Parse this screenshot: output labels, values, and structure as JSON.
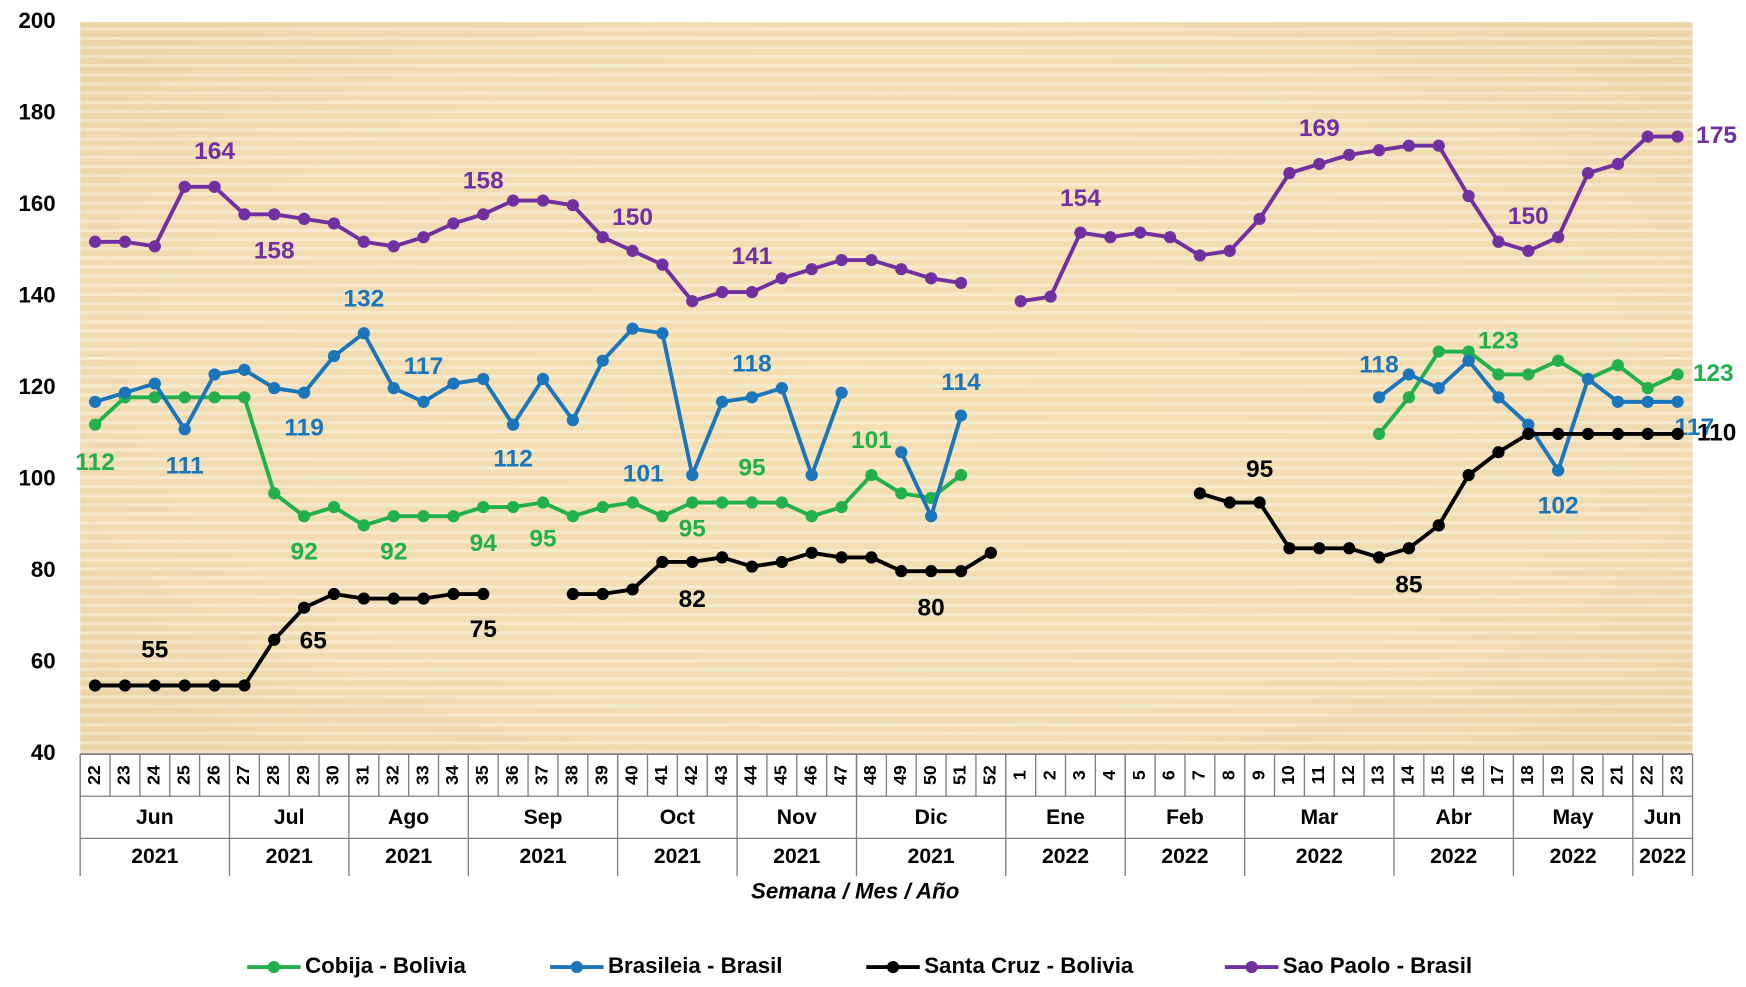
{
  "chart_data": {
    "type": "line",
    "x_label": "Semana / Mes / Año",
    "categories": [
      "22",
      "23",
      "24",
      "25",
      "26",
      "27",
      "28",
      "29",
      "30",
      "31",
      "32",
      "33",
      "34",
      "35",
      "36",
      "37",
      "38",
      "39",
      "40",
      "41",
      "42",
      "43",
      "44",
      "45",
      "46",
      "47",
      "48",
      "49",
      "50",
      "51",
      "52",
      "1",
      "2",
      "3",
      "4",
      "5",
      "6",
      "7",
      "8",
      "9",
      "10",
      "11",
      "12",
      "13",
      "14",
      "15",
      "16",
      "17",
      "18",
      "19",
      "20",
      "21",
      "22",
      "23"
    ],
    "months": [
      "Jun",
      "Jun",
      "Jun",
      "Jun",
      "Jun",
      "Jul",
      "Jul",
      "Jul",
      "Jul",
      "Ago",
      "Ago",
      "Ago",
      "Ago",
      "Sep",
      "Sep",
      "Sep",
      "Sep",
      "Sep",
      "Oct",
      "Oct",
      "Oct",
      "Oct",
      "Nov",
      "Nov",
      "Nov",
      "Nov",
      "Dic",
      "Dic",
      "Dic",
      "Dic",
      "Dic",
      "Ene",
      "Ene",
      "Ene",
      "Ene",
      "Feb",
      "Feb",
      "Feb",
      "Feb",
      "Mar",
      "Mar",
      "Mar",
      "Mar",
      "Mar",
      "Abr",
      "Abr",
      "Abr",
      "Abr",
      "May",
      "May",
      "May",
      "May",
      "Jun",
      "Jun"
    ],
    "years": [
      "2021",
      "2021",
      "2021",
      "2021",
      "2021",
      "2021",
      "2021",
      "2021",
      "2021",
      "2021",
      "2021",
      "2021",
      "2021",
      "2021",
      "2021",
      "2021",
      "2021",
      "2021",
      "2021",
      "2021",
      "2021",
      "2021",
      "2021",
      "2021",
      "2021",
      "2021",
      "2021",
      "2021",
      "2021",
      "2021",
      "2021",
      "2022",
      "2022",
      "2022",
      "2022",
      "2022",
      "2022",
      "2022",
      "2022",
      "2022",
      "2022",
      "2022",
      "2022",
      "2022",
      "2022",
      "2022",
      "2022",
      "2022",
      "2022",
      "2022",
      "2022",
      "2022",
      "2022",
      "2022"
    ],
    "ylim": [
      40,
      200
    ],
    "yticks": [
      40,
      60,
      80,
      100,
      120,
      140,
      160,
      180,
      200
    ],
    "grid": false,
    "legend": "bottom",
    "series": [
      {
        "name": "Cobija - Bolivia",
        "color": "#21b04b",
        "values": [
          112,
          118,
          118,
          118,
          118,
          118,
          97,
          92,
          94,
          90,
          92,
          92,
          92,
          94,
          94,
          95,
          92,
          94,
          95,
          92,
          95,
          95,
          95,
          95,
          92,
          94,
          101,
          97,
          96,
          101,
          null,
          null,
          null,
          null,
          null,
          null,
          null,
          null,
          null,
          null,
          null,
          null,
          null,
          110,
          118,
          128,
          128,
          123,
          123,
          126,
          122,
          125,
          120,
          123
        ],
        "value_labels": [
          "112",
          null,
          null,
          null,
          null,
          null,
          null,
          "92",
          null,
          null,
          "92",
          null,
          null,
          "94",
          null,
          "95",
          null,
          null,
          null,
          null,
          "95",
          null,
          "95",
          null,
          null,
          null,
          "101",
          null,
          null,
          null,
          null,
          null,
          null,
          null,
          null,
          null,
          null,
          null,
          null,
          null,
          null,
          null,
          null,
          null,
          null,
          null,
          null,
          "123",
          null,
          null,
          null,
          null,
          null,
          "123"
        ]
      },
      {
        "name": "Brasileia - Brasil",
        "color": "#1b75bb",
        "values": [
          117,
          119,
          121,
          111,
          123,
          124,
          120,
          119,
          127,
          132,
          120,
          117,
          121,
          122,
          112,
          122,
          113,
          126,
          133,
          132,
          101,
          117,
          118,
          120,
          101,
          119,
          null,
          106,
          92,
          114,
          null,
          null,
          null,
          null,
          null,
          null,
          null,
          null,
          null,
          null,
          null,
          null,
          null,
          118,
          123,
          120,
          126,
          118,
          112,
          102,
          122,
          117,
          117,
          117
        ],
        "value_labels": [
          null,
          null,
          null,
          "111",
          null,
          null,
          null,
          "119",
          null,
          "132",
          null,
          "117",
          null,
          null,
          "112",
          null,
          null,
          null,
          null,
          null,
          "101",
          null,
          "118",
          null,
          null,
          null,
          null,
          null,
          null,
          "114",
          null,
          null,
          null,
          null,
          null,
          null,
          null,
          null,
          null,
          null,
          null,
          null,
          null,
          "118",
          null,
          null,
          null,
          null,
          null,
          "102",
          null,
          null,
          null,
          "117"
        ]
      },
      {
        "name": "Santa Cruz - Bolivia",
        "color": "#000000",
        "values": [
          55,
          55,
          55,
          55,
          55,
          55,
          65,
          72,
          75,
          74,
          74,
          74,
          75,
          75,
          null,
          null,
          75,
          75,
          76,
          82,
          82,
          83,
          81,
          82,
          84,
          83,
          83,
          80,
          80,
          80,
          84,
          null,
          null,
          null,
          null,
          null,
          null,
          97,
          95,
          95,
          85,
          85,
          85,
          83,
          85,
          90,
          101,
          106,
          110,
          110,
          110,
          110,
          110,
          110
        ],
        "value_labels": [
          null,
          null,
          "55",
          null,
          null,
          null,
          "65",
          null,
          null,
          null,
          null,
          null,
          null,
          "75",
          null,
          null,
          null,
          null,
          null,
          null,
          "82",
          null,
          null,
          null,
          null,
          null,
          null,
          null,
          "80",
          null,
          null,
          null,
          null,
          null,
          null,
          null,
          null,
          null,
          null,
          "95",
          null,
          null,
          null,
          null,
          "85",
          null,
          null,
          null,
          null,
          null,
          null,
          null,
          null,
          "110"
        ]
      },
      {
        "name": "Sao Paolo - Brasil",
        "color": "#7030a0",
        "values": [
          152,
          152,
          151,
          164,
          164,
          158,
          158,
          157,
          156,
          152,
          151,
          153,
          156,
          158,
          161,
          161,
          160,
          153,
          150,
          147,
          139,
          141,
          141,
          144,
          146,
          148,
          148,
          146,
          144,
          143,
          null,
          139,
          140,
          154,
          153,
          154,
          153,
          149,
          150,
          157,
          167,
          169,
          171,
          172,
          173,
          173,
          162,
          152,
          150,
          153,
          167,
          169,
          175,
          175
        ],
        "value_labels": [
          null,
          null,
          null,
          null,
          "164",
          null,
          "158",
          null,
          null,
          null,
          null,
          null,
          null,
          "158",
          null,
          null,
          null,
          null,
          "150",
          null,
          null,
          null,
          "141",
          null,
          null,
          null,
          null,
          null,
          null,
          null,
          null,
          null,
          null,
          "154",
          null,
          null,
          null,
          null,
          null,
          null,
          null,
          "169",
          null,
          null,
          null,
          null,
          null,
          null,
          "150",
          null,
          null,
          null,
          null,
          "175"
        ]
      }
    ]
  }
}
